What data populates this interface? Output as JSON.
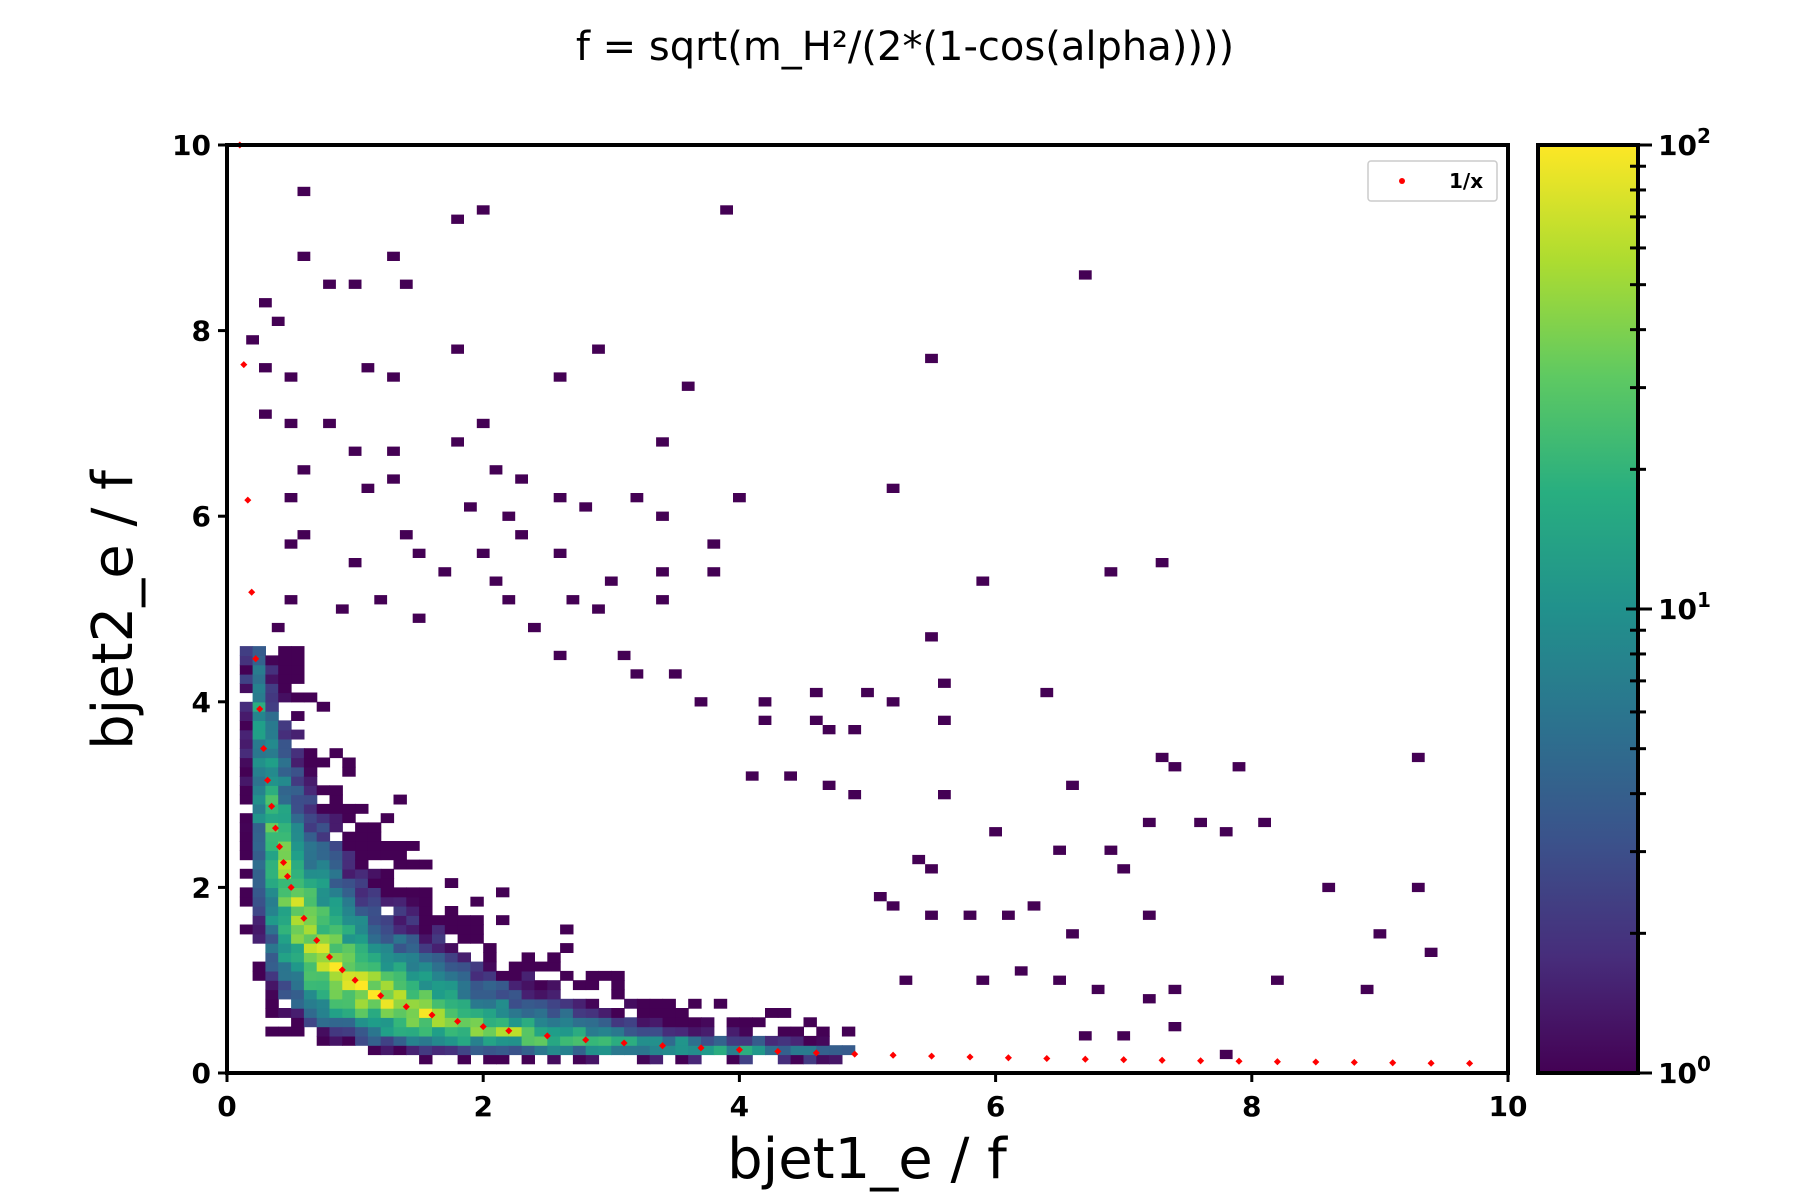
{
  "chart_data": {
    "type": "heatmap",
    "title": "f = sqrt(m_H²/(2*(1-cos(alpha))))",
    "xlabel": "bjet1_e / f",
    "ylabel": "bjet2_e / f",
    "xlim": [
      0,
      10
    ],
    "ylim": [
      0,
      10
    ],
    "x_ticks": [
      0,
      2,
      4,
      6,
      8,
      10
    ],
    "y_ticks": [
      0,
      2,
      4,
      6,
      8,
      10
    ],
    "x_tick_labels": [
      "0",
      "2",
      "4",
      "6",
      "8",
      "10"
    ],
    "y_tick_labels": [
      "0",
      "2",
      "4",
      "6",
      "8",
      "10"
    ],
    "bins": 100,
    "colormap": "viridis",
    "color_scale": "log",
    "color_range": [
      1,
      100
    ],
    "colorbar_tick_labels": [
      {
        "base": "10",
        "exp": "0",
        "value": 1
      },
      {
        "base": "10",
        "exp": "1",
        "value": 10
      },
      {
        "base": "10",
        "exp": "2",
        "value": 100
      }
    ],
    "legend": {
      "position": "top-right",
      "entries": [
        {
          "label": "1/x",
          "marker": "dot",
          "color": "#ff0000"
        }
      ]
    },
    "reference_curve": {
      "label": "1/x",
      "color": "#ff0000",
      "x": [
        0.1,
        0.131,
        0.162,
        0.193,
        0.224,
        0.255,
        0.286,
        0.317,
        0.348,
        0.379,
        0.41,
        0.441,
        0.472,
        0.5,
        0.6,
        0.7,
        0.8,
        0.9,
        1.0,
        1.2,
        1.4,
        1.6,
        1.8,
        2.0,
        2.2,
        2.5,
        2.8,
        3.1,
        3.4,
        3.7,
        4.0,
        4.3,
        4.6,
        4.9,
        5.2,
        5.5,
        5.8,
        6.1,
        6.4,
        6.7,
        7.0,
        7.3,
        7.6,
        7.9,
        8.2,
        8.5,
        8.8,
        9.1,
        9.4,
        9.7
      ],
      "y": [
        10.0,
        7.634,
        6.173,
        5.181,
        4.464,
        3.922,
        3.497,
        3.155,
        2.874,
        2.639,
        2.439,
        2.268,
        2.119,
        2.0,
        1.667,
        1.429,
        1.25,
        1.111,
        1.0,
        0.833,
        0.714,
        0.625,
        0.556,
        0.5,
        0.455,
        0.4,
        0.357,
        0.323,
        0.294,
        0.27,
        0.25,
        0.233,
        0.217,
        0.204,
        0.192,
        0.182,
        0.172,
        0.164,
        0.156,
        0.149,
        0.143,
        0.137,
        0.132,
        0.127,
        0.122,
        0.118,
        0.114,
        0.11,
        0.106,
        0.103
      ]
    },
    "sparse_cells": [
      [
        0.6,
        9.5
      ],
      [
        1.8,
        9.2
      ],
      [
        2.0,
        9.3
      ],
      [
        3.9,
        9.3
      ],
      [
        0.3,
        8.3
      ],
      [
        0.4,
        8.1
      ],
      [
        0.6,
        8.8
      ],
      [
        0.8,
        8.5
      ],
      [
        1.0,
        8.5
      ],
      [
        1.3,
        8.8
      ],
      [
        1.4,
        8.5
      ],
      [
        6.7,
        8.6
      ],
      [
        0.2,
        7.9
      ],
      [
        0.3,
        7.6
      ],
      [
        0.5,
        7.5
      ],
      [
        1.1,
        7.6
      ],
      [
        1.3,
        7.5
      ],
      [
        1.8,
        7.8
      ],
      [
        2.6,
        7.5
      ],
      [
        2.9,
        7.8
      ],
      [
        3.6,
        7.4
      ],
      [
        5.5,
        7.7
      ],
      [
        0.3,
        7.1
      ],
      [
        0.5,
        7.0
      ],
      [
        0.8,
        7.0
      ],
      [
        1.0,
        6.7
      ],
      [
        1.3,
        6.7
      ],
      [
        1.8,
        6.8
      ],
      [
        2.0,
        7.0
      ],
      [
        2.1,
        6.5
      ],
      [
        2.3,
        6.4
      ],
      [
        3.4,
        6.8
      ],
      [
        0.5,
        6.2
      ],
      [
        0.6,
        6.5
      ],
      [
        1.1,
        6.3
      ],
      [
        1.3,
        6.4
      ],
      [
        1.9,
        6.1
      ],
      [
        2.2,
        6.0
      ],
      [
        2.6,
        6.2
      ],
      [
        2.8,
        6.1
      ],
      [
        3.2,
        6.2
      ],
      [
        3.4,
        6.0
      ],
      [
        4.0,
        6.2
      ],
      [
        5.2,
        6.3
      ],
      [
        0.5,
        5.7
      ],
      [
        0.6,
        5.8
      ],
      [
        1.4,
        5.8
      ],
      [
        1.5,
        5.6
      ],
      [
        2.0,
        5.6
      ],
      [
        2.3,
        5.8
      ],
      [
        2.6,
        5.6
      ],
      [
        3.8,
        5.7
      ],
      [
        1.0,
        5.5
      ],
      [
        1.7,
        5.4
      ],
      [
        2.1,
        5.3
      ],
      [
        3.0,
        5.3
      ],
      [
        3.4,
        5.4
      ],
      [
        3.8,
        5.4
      ],
      [
        5.9,
        5.3
      ],
      [
        6.9,
        5.4
      ],
      [
        7.3,
        5.5
      ],
      [
        0.5,
        5.1
      ],
      [
        0.9,
        5.0
      ],
      [
        1.2,
        5.1
      ],
      [
        2.2,
        5.1
      ],
      [
        2.7,
        5.1
      ],
      [
        2.9,
        5.0
      ],
      [
        3.4,
        5.1
      ],
      [
        0.4,
        4.8
      ],
      [
        1.5,
        4.9
      ],
      [
        2.4,
        4.8
      ],
      [
        2.6,
        4.5
      ],
      [
        3.1,
        4.5
      ],
      [
        5.5,
        4.7
      ],
      [
        3.2,
        4.3
      ],
      [
        3.5,
        4.3
      ],
      [
        4.6,
        4.1
      ],
      [
        5.0,
        4.1
      ],
      [
        5.2,
        4.0
      ],
      [
        5.6,
        4.2
      ],
      [
        6.4,
        4.1
      ],
      [
        3.7,
        4.0
      ],
      [
        4.2,
        4.0
      ],
      [
        4.2,
        3.8
      ],
      [
        4.6,
        3.8
      ],
      [
        4.7,
        3.7
      ],
      [
        4.9,
        3.7
      ],
      [
        5.6,
        3.8
      ],
      [
        7.3,
        3.4
      ],
      [
        7.4,
        3.3
      ],
      [
        7.9,
        3.3
      ],
      [
        9.3,
        3.4
      ],
      [
        4.1,
        3.2
      ],
      [
        4.4,
        3.2
      ],
      [
        4.7,
        3.1
      ],
      [
        4.9,
        3.0
      ],
      [
        5.6,
        3.0
      ],
      [
        6.6,
        3.1
      ],
      [
        7.2,
        2.7
      ],
      [
        7.6,
        2.7
      ],
      [
        7.8,
        2.6
      ],
      [
        8.1,
        2.7
      ],
      [
        6.0,
        2.6
      ],
      [
        6.5,
        2.4
      ],
      [
        6.9,
        2.4
      ],
      [
        5.4,
        2.3
      ],
      [
        5.5,
        2.2
      ],
      [
        7.0,
        2.2
      ],
      [
        5.1,
        1.9
      ],
      [
        5.2,
        1.8
      ],
      [
        5.5,
        1.7
      ],
      [
        5.8,
        1.7
      ],
      [
        6.1,
        1.7
      ],
      [
        6.3,
        1.8
      ],
      [
        6.6,
        1.5
      ],
      [
        7.2,
        1.7
      ],
      [
        8.6,
        2.0
      ],
      [
        9.3,
        2.0
      ],
      [
        9.0,
        1.5
      ],
      [
        9.4,
        1.3
      ],
      [
        5.3,
        1.0
      ],
      [
        5.9,
        1.0
      ],
      [
        6.2,
        1.1
      ],
      [
        6.5,
        1.0
      ],
      [
        6.8,
        0.9
      ],
      [
        7.2,
        0.8
      ],
      [
        7.4,
        0.9
      ],
      [
        7.4,
        0.5
      ],
      [
        8.2,
        1.0
      ],
      [
        8.9,
        0.9
      ],
      [
        6.7,
        0.4
      ],
      [
        7.0,
        0.4
      ],
      [
        7.8,
        0.2
      ]
    ]
  }
}
